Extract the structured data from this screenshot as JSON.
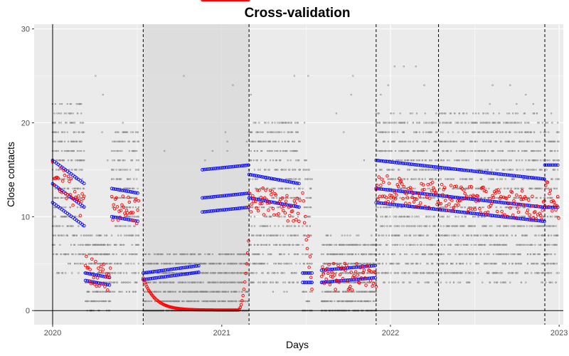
{
  "chart_data": {
    "type": "scatter",
    "title": "Cross-validation",
    "xlabel": "Days",
    "ylabel": "Close contacts",
    "xlim": [
      "2019-11-22",
      "2023-01-10"
    ],
    "ylim": [
      -1.5,
      30.5
    ],
    "x_ticks": [
      {
        "label": "2020",
        "date": "2020-01-01"
      },
      {
        "label": "2021",
        "date": "2021-01-01"
      },
      {
        "label": "2022",
        "date": "2022-01-01"
      },
      {
        "label": "2023",
        "date": "2023-01-01"
      }
    ],
    "y_ticks": [
      0,
      10,
      20,
      30
    ],
    "grid": true,
    "reference_lines": {
      "vertical_solid": "2020-01-01",
      "horizontal_solid": 0,
      "vertical_dashed": [
        "2020-07-15",
        "2021-03-01",
        "2021-12-01",
        "2022-04-15",
        "2022-12-01"
      ]
    },
    "shaded_region": {
      "from": "2020-07-15",
      "to": "2021-03-01"
    },
    "colors": {
      "observed": "#808080",
      "series_blue": "#0000ff",
      "series_red": "#ff0000",
      "panel": "#ebebeb",
      "shade": "#d9d9d9"
    },
    "segments": [
      {
        "start": "2020-01-01",
        "end": "2020-03-10",
        "red_start": 15.0,
        "red_end": 11.0,
        "blue_levels": [
          16.0,
          13.5,
          11.5
        ],
        "blue_slope": -2.5
      },
      {
        "start": "2020-03-12",
        "end": "2020-05-05",
        "red_start": 4.5,
        "red_end": 3.5,
        "blue_levels": [
          4.0,
          3.2
        ],
        "blue_slope": -0.5
      },
      {
        "start": "2020-05-08",
        "end": "2020-07-05",
        "red_start": 11.0,
        "red_end": 10.5,
        "blue_levels": [
          13.0,
          10.0
        ],
        "blue_slope": -0.5
      },
      {
        "start": "2020-07-15",
        "end": "2021-03-01",
        "red_curve": "decay",
        "blue_levels": [
          4.0,
          3.3
        ],
        "blue_slope": 0.8,
        "blue_end": "2020-11-15"
      },
      {
        "start": "2020-11-20",
        "end": "2021-03-01",
        "blue_levels": [
          15.0,
          12.0,
          10.5
        ],
        "blue_slope": 0.5
      },
      {
        "start": "2021-03-01",
        "end": "2021-06-20",
        "red_start": 12.0,
        "red_end": 10.5,
        "blue_levels": [
          14.5,
          12.0
        ],
        "blue_slope": -1.0
      },
      {
        "start": "2021-06-25",
        "end": "2021-07-15",
        "red_start": 12.0,
        "red_end": 3.0,
        "blue_levels": [
          4.0,
          3.0
        ],
        "blue_slope": 0
      },
      {
        "start": "2021-08-05",
        "end": "2021-12-01",
        "red_start": 3.5,
        "red_end": 3.8,
        "blue_levels": [
          4.3,
          3.0
        ],
        "blue_slope": 0.5
      },
      {
        "start": "2021-12-01",
        "end": "2022-12-01",
        "red_start": 13.0,
        "red_end": 11.0,
        "blue_levels": [
          16.0,
          13.0,
          11.5
        ],
        "blue_slope": -2.0
      },
      {
        "start": "2022-12-01",
        "end": "2022-12-31",
        "red_start": 12.5,
        "red_end": 11.0,
        "blue_levels": [
          15.5,
          11.0
        ],
        "blue_slope": 0
      }
    ]
  }
}
